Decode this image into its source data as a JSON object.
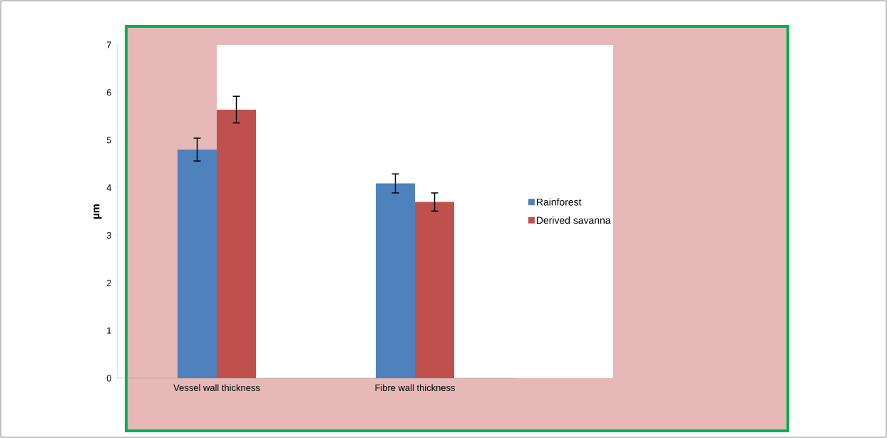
{
  "chart_data": {
    "type": "bar",
    "ylabel": "µm",
    "categories": [
      "Vessel wall thickness",
      "Fibre wall thickness"
    ],
    "series": [
      {
        "name": "Rainforest",
        "color": "#4f81bd",
        "values": [
          4.8,
          4.09
        ],
        "errors": [
          0.24,
          0.2
        ]
      },
      {
        "name": "Derived savanna",
        "color": "#c0504d",
        "values": [
          5.64,
          3.7
        ],
        "errors": [
          0.28,
          0.19
        ]
      }
    ],
    "ylim": [
      0,
      7
    ],
    "yticks": [
      0,
      1,
      2,
      3,
      4,
      5,
      6,
      7
    ],
    "legend": "right"
  }
}
